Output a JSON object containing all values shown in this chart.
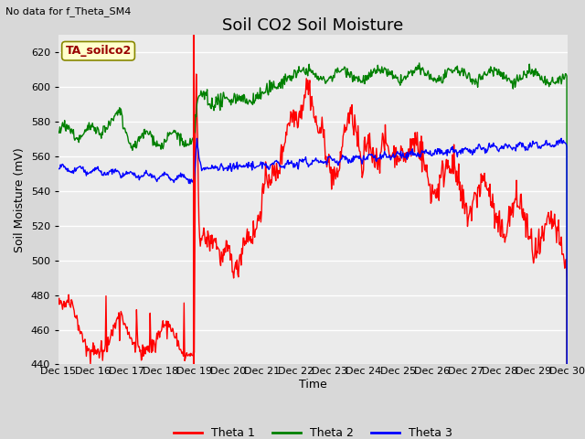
{
  "title": "Soil CO2 Soil Moisture",
  "ylabel": "Soil Moisture (mV)",
  "xlabel": "Time",
  "top_left_text": "No data for f_Theta_SM4",
  "annotation_text": "TA_soilco2",
  "annotation_facecolor": "#ffffcc",
  "annotation_edgecolor": "#888800",
  "annotation_textcolor": "#990000",
  "ylim": [
    440,
    630
  ],
  "yticks": [
    440,
    460,
    480,
    500,
    520,
    540,
    560,
    580,
    600,
    620
  ],
  "bg_color": "#d8d8d8",
  "plot_bg_color": "#ebebeb",
  "grid_color": "#ffffff",
  "vline_color": "red",
  "legend_colors": [
    "red",
    "green",
    "blue"
  ],
  "title_fontsize": 13,
  "label_fontsize": 9,
  "tick_label_fontsize": 8
}
